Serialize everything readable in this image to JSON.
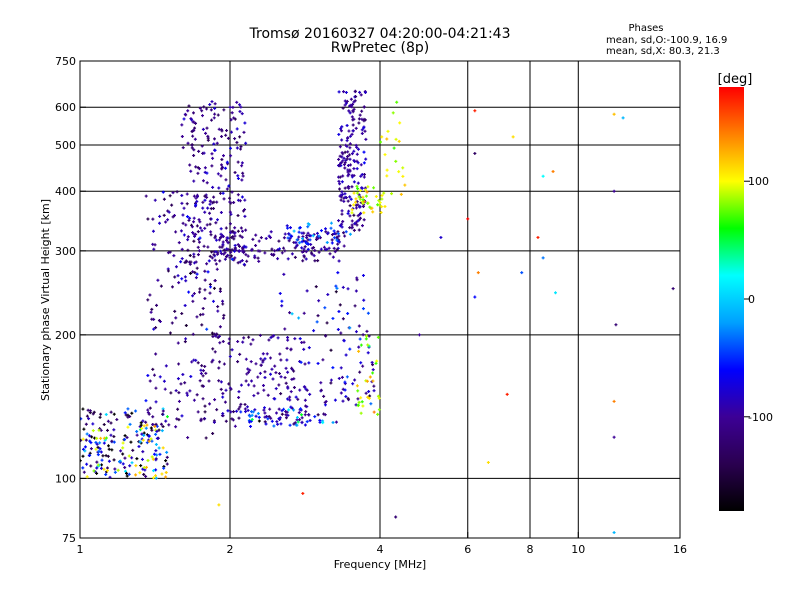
{
  "header": {
    "title": "Tromsø 20160327 04:20:00-04:21:43",
    "subtitle": "RwPretec (8p)",
    "phases_label": "Phases",
    "stats_o": "mean, sd,O:-100.9, 16.9",
    "stats_x": "mean, sd,X:  80.3, 21.3"
  },
  "colorbar": {
    "unit": "[deg]",
    "ticks": [
      {
        "label": "100",
        "value": 100
      },
      {
        "label": "0",
        "value": 0
      },
      {
        "label": "-100",
        "value": -100
      }
    ],
    "range": [
      -180,
      180
    ],
    "colors": [
      "#000000",
      "#2a0050",
      "#3c0096",
      "#0000ff",
      "#00a0ff",
      "#00ffff",
      "#00ff00",
      "#ffff00",
      "#ff8000",
      "#ff0000"
    ]
  },
  "chart_data": {
    "type": "scatter",
    "title": "Tromsø 20160327 04:20:00-04:21:43",
    "subtitle": "RwPretec (8p)",
    "xlabel": "Frequency [MHz]",
    "ylabel": "Stationary phase Virtual Height [km]",
    "x_scale": "log",
    "y_scale": "log",
    "xlim": [
      1,
      16
    ],
    "ylim": [
      75,
      750
    ],
    "x_ticks": [
      {
        "label": "1",
        "value": 1
      },
      {
        "label": "2",
        "value": 2
      },
      {
        "label": "4",
        "value": 4
      },
      {
        "label": "6",
        "value": 6
      },
      {
        "label": "8",
        "value": 8
      },
      {
        "label": "10",
        "value": 10
      },
      {
        "label": "16",
        "value": 16
      }
    ],
    "x_gridlines": [
      2,
      4,
      6,
      8,
      10
    ],
    "y_ticks": [
      {
        "label": "75",
        "value": 75
      },
      {
        "label": "100",
        "value": 100
      },
      {
        "label": "200",
        "value": 200
      },
      {
        "label": "300",
        "value": 300
      },
      {
        "label": "400",
        "value": 400
      },
      {
        "label": "500",
        "value": 500
      },
      {
        "label": "600",
        "value": 600
      },
      {
        "label": "750",
        "value": 750
      }
    ],
    "y_gridlines": [
      100,
      200,
      300,
      400,
      500,
      600
    ],
    "color_label": "[deg]",
    "grid": true,
    "clusters": [
      {
        "freq": [
          1.0,
          1.5
        ],
        "height": [
          100,
          140
        ],
        "phase": -100,
        "phase_sd": 60,
        "n": 180
      },
      {
        "freq": [
          1.0,
          1.5
        ],
        "height": [
          100,
          130
        ],
        "phase": 110,
        "phase_sd": 15,
        "n": 40
      },
      {
        "freq": [
          1.35,
          1.95
        ],
        "height": [
          120,
          400
        ],
        "phase": -110,
        "phase_sd": 20,
        "n": 220
      },
      {
        "freq": [
          1.6,
          2.15
        ],
        "height": [
          280,
          620
        ],
        "phase": -105,
        "phase_sd": 18,
        "n": 260
      },
      {
        "freq": [
          1.9,
          3.4
        ],
        "height": [
          285,
          330
        ],
        "phase": -105,
        "phase_sd": 15,
        "n": 160
      },
      {
        "freq": [
          2.6,
          3.5
        ],
        "height": [
          310,
          345
        ],
        "phase": -40,
        "phase_sd": 20,
        "n": 40
      },
      {
        "freq": [
          3.3,
          3.75
        ],
        "height": [
          330,
          650
        ],
        "phase": -100,
        "phase_sd": 15,
        "n": 200
      },
      {
        "freq": [
          3.5,
          4.1
        ],
        "height": [
          360,
          410
        ],
        "phase": 100,
        "phase_sd": 15,
        "n": 40
      },
      {
        "freq": [
          1.9,
          2.9
        ],
        "height": [
          130,
          200
        ],
        "phase": -100,
        "phase_sd": 15,
        "n": 160
      },
      {
        "freq": [
          2.0,
          3.3
        ],
        "height": [
          128,
          140
        ],
        "phase": -60,
        "phase_sd": 40,
        "n": 60
      },
      {
        "freq": [
          3.0,
          3.9
        ],
        "height": [
          140,
          210
        ],
        "phase": -95,
        "phase_sd": 25,
        "n": 60
      },
      {
        "freq": [
          3.6,
          4.0
        ],
        "height": [
          135,
          200
        ],
        "phase": 95,
        "phase_sd": 25,
        "n": 30
      },
      {
        "freq": [
          2.5,
          3.8
        ],
        "height": [
          200,
          270
        ],
        "phase": -80,
        "phase_sd": 40,
        "n": 40
      },
      {
        "freq": [
          4.0,
          4.5
        ],
        "height": [
          380,
          620
        ],
        "phase": 100,
        "phase_sd": 20,
        "n": 20
      }
    ],
    "points": [
      {
        "f": 4.3,
        "h": 83,
        "p": -120
      },
      {
        "f": 4.8,
        "h": 200,
        "p": -100
      },
      {
        "f": 6.2,
        "h": 590,
        "p": 170
      },
      {
        "f": 6.2,
        "h": 480,
        "p": -130
      },
      {
        "f": 6.0,
        "h": 350,
        "p": 180
      },
      {
        "f": 6.2,
        "h": 240,
        "p": -60
      },
      {
        "f": 6.3,
        "h": 270,
        "p": 140
      },
      {
        "f": 6.6,
        "h": 108,
        "p": 110
      },
      {
        "f": 7.4,
        "h": 520,
        "p": 110
      },
      {
        "f": 8.3,
        "h": 320,
        "p": 170
      },
      {
        "f": 8.5,
        "h": 290,
        "p": -30
      },
      {
        "f": 8.5,
        "h": 430,
        "p": 20
      },
      {
        "f": 8.9,
        "h": 440,
        "p": 140
      },
      {
        "f": 9.0,
        "h": 245,
        "p": 10
      },
      {
        "f": 7.7,
        "h": 270,
        "p": -40
      },
      {
        "f": 11.8,
        "h": 580,
        "p": 120
      },
      {
        "f": 12.3,
        "h": 570,
        "p": -10
      },
      {
        "f": 11.8,
        "h": 400,
        "p": -100
      },
      {
        "f": 11.9,
        "h": 210,
        "p": -120
      },
      {
        "f": 11.8,
        "h": 145,
        "p": 140
      },
      {
        "f": 11.8,
        "h": 122,
        "p": -100
      },
      {
        "f": 11.8,
        "h": 77,
        "p": -10
      },
      {
        "f": 15.5,
        "h": 250,
        "p": -120
      },
      {
        "f": 5.3,
        "h": 320,
        "p": -80
      },
      {
        "f": 7.2,
        "h": 150,
        "p": 170
      },
      {
        "f": 1.9,
        "h": 88,
        "p": 110
      },
      {
        "f": 2.8,
        "h": 93,
        "p": 170
      }
    ]
  }
}
